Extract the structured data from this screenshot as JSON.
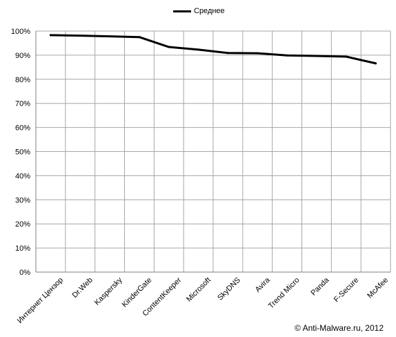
{
  "chart_data": {
    "type": "line",
    "categories": [
      "Интернет Цензор",
      "Dr.Web",
      "Kaspersky",
      "KinderGate",
      "ContentKeeper",
      "Microsoft",
      "SkyDNS",
      "Avira",
      "Trend Micro",
      "Panda",
      "F-Secure",
      "McAfee"
    ],
    "series": [
      {
        "name": "Среднее",
        "values": [
          98.3,
          98.1,
          97.8,
          97.5,
          93.4,
          92.3,
          90.9,
          90.8,
          89.9,
          89.7,
          89.4,
          86.6
        ],
        "color": "#000000"
      }
    ],
    "yticks": [
      "0%",
      "10%",
      "20%",
      "30%",
      "40%",
      "50%",
      "60%",
      "70%",
      "80%",
      "90%",
      "100%"
    ],
    "ylim": [
      0,
      100
    ],
    "grid": true,
    "legend_position": "top"
  },
  "footer": {
    "credit": "© Anti-Malware.ru,  2012"
  }
}
